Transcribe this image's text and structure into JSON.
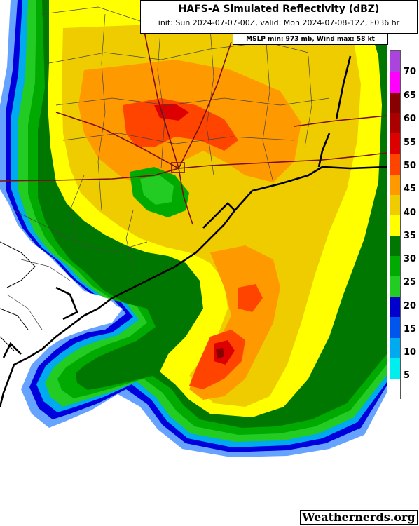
{
  "header": {
    "title": "HAFS-A Simulated Reflectivity (dBZ)",
    "subtitle": "init: Sun 2024-07-07-00Z, valid: Mon 2024-07-08-12Z, F036 hr",
    "mslp_info": "MSLP min: 973 mb, Wind max: 58 kt"
  },
  "colorbar": {
    "labels": [
      "70",
      "65",
      "60",
      "55",
      "50",
      "45",
      "40",
      "35",
      "30",
      "25",
      "20",
      "15",
      "10",
      "5"
    ],
    "colors": [
      "#ffffff",
      "#00eeee",
      "#00aaee",
      "#0055ee",
      "#0000cc",
      "#22cc22",
      "#00aa00",
      "#007700",
      "#ffff00",
      "#eecc00",
      "#ff9900",
      "#ff4400",
      "#dd0000",
      "#aa0000",
      "#880000",
      "#ff00ff",
      "#aa44dd"
    ]
  },
  "map": {
    "fill_colors": {
      "lt_blue": "#5599ff",
      "blue": "#0000dd",
      "cyan": "#00aaee",
      "green_light": "#22cc22",
      "green": "#00aa00",
      "green_dark": "#007700",
      "yellow": "#ffff00",
      "gold": "#eecc00",
      "orange": "#ff9900",
      "red_orange": "#ff4400",
      "red": "#dd0000",
      "dark_red": "#880000",
      "coast": "#000000",
      "roads": "#7a1010",
      "county_lines": "#444444",
      "gulf_white": "#ffffff"
    }
  },
  "brand": "Weathernerds.org"
}
